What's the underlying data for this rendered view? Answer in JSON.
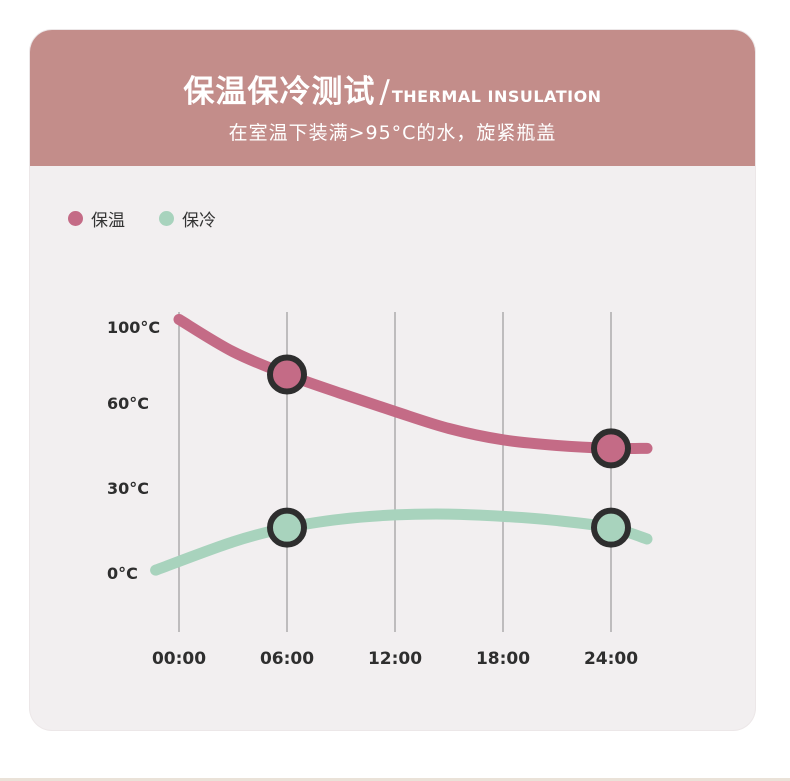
{
  "header": {
    "title_cn": "保温保冷测试",
    "title_sep": "/",
    "title_en": "THERMAL INSULATION",
    "subtitle": "在室温下装满>95°C的水，旋紧瓶盖"
  },
  "colors": {
    "header_bg": "#c38d8a",
    "card_bg": "#f2eff0",
    "warm_series": "#c46b86",
    "cold_series": "#a8d3bd",
    "marker_ring": "#2e2e2e"
  },
  "chart_data": {
    "type": "line",
    "title": "保温保冷测试/THERMAL INSULATION",
    "subtitle": "在室温下装满>95°C的水，旋紧瓶盖",
    "x_ticks": [
      "00:00",
      "06:00",
      "12:00",
      "18:00",
      "24:00"
    ],
    "y_ticks": [
      "100°C",
      "60°C",
      "30°C",
      "0°C"
    ],
    "y_tick_values": [
      100,
      60,
      30,
      0
    ],
    "y_scale": "non-linear (ticks unevenly spaced)",
    "grid": "vertical lines at x ticks",
    "legend_position": "top-left",
    "series": [
      {
        "name": "保温",
        "color": "#c46b86",
        "x_hours": [
          0,
          3,
          6,
          9,
          12,
          15,
          18,
          21,
          24,
          26
        ],
        "values": [
          104,
          87,
          75,
          65,
          57,
          51,
          47,
          45,
          44,
          44
        ],
        "markers": [
          {
            "x_hours": 6,
            "value": 75
          },
          {
            "x_hours": 24,
            "value": 44
          }
        ]
      },
      {
        "name": "保冷",
        "color": "#a8d3bd",
        "x_hours": [
          -1.3,
          3,
          6,
          9,
          12,
          15,
          18,
          21,
          24,
          26
        ],
        "values": [
          1,
          11,
          16,
          19,
          20.5,
          20.8,
          20,
          18.5,
          16,
          12
        ],
        "markers": [
          {
            "x_hours": 6,
            "value": 16
          },
          {
            "x_hours": 24,
            "value": 16
          }
        ]
      }
    ]
  }
}
